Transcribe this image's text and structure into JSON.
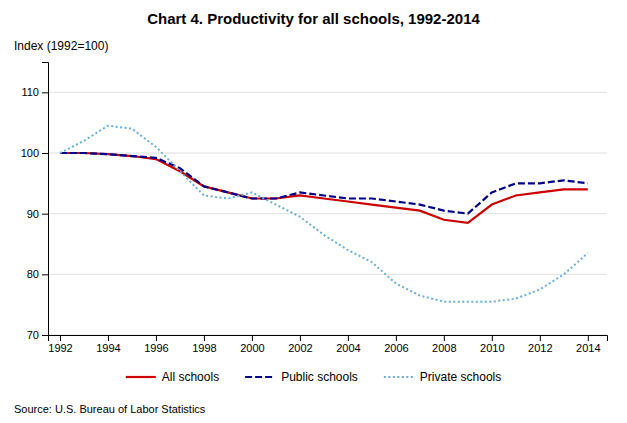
{
  "chart_data": {
    "type": "line",
    "title": "Chart 4. Productivity for all schools, 1992-2014",
    "y_label": "Index (1992=100)",
    "source": "Source: U.S. Bureau of Labor Statistics",
    "x": [
      1992,
      1993,
      1994,
      1995,
      1996,
      1997,
      1998,
      1999,
      2000,
      2001,
      2002,
      2003,
      2004,
      2005,
      2006,
      2007,
      2008,
      2009,
      2010,
      2011,
      2012,
      2013,
      2014
    ],
    "series": [
      {
        "name": "All schools",
        "color": "#cc0000",
        "line_style": "solid",
        "values": [
          100,
          100.0,
          99.8,
          99.5,
          99.0,
          97.0,
          94.5,
          93.5,
          92.5,
          92.5,
          93.0,
          92.5,
          92.0,
          91.5,
          91.0,
          90.5,
          89.0,
          88.5,
          91.5,
          93.0,
          93.5,
          94.0,
          94.0
        ]
      },
      {
        "name": "Public schools",
        "color": "#00008B",
        "line_style": "dashed",
        "values": [
          100,
          100.0,
          99.8,
          99.5,
          99.2,
          97.5,
          94.5,
          93.5,
          92.5,
          92.5,
          93.5,
          93.0,
          92.5,
          92.5,
          92.0,
          91.5,
          90.5,
          90.0,
          93.5,
          95.0,
          95.0,
          95.5,
          95.0
        ]
      },
      {
        "name": "Private schools",
        "color": "#6baed6",
        "line_style": "dotted",
        "values": [
          100,
          102.0,
          104.5,
          104.0,
          101.0,
          97.0,
          93.0,
          92.5,
          93.5,
          91.5,
          89.5,
          86.5,
          84.0,
          82.0,
          78.5,
          76.5,
          75.5,
          75.5,
          75.5,
          76.0,
          77.5,
          80.0,
          83.5
        ]
      }
    ],
    "xlim": [
      1991.5,
      2014.8
    ],
    "xticks": [
      1992,
      1994,
      1996,
      1998,
      2000,
      2002,
      2004,
      2006,
      2008,
      2010,
      2012,
      2014
    ],
    "ylim": [
      70,
      115
    ],
    "yticks": [
      70,
      80,
      90,
      100,
      110
    ],
    "grid": true,
    "legend": "bottom"
  }
}
